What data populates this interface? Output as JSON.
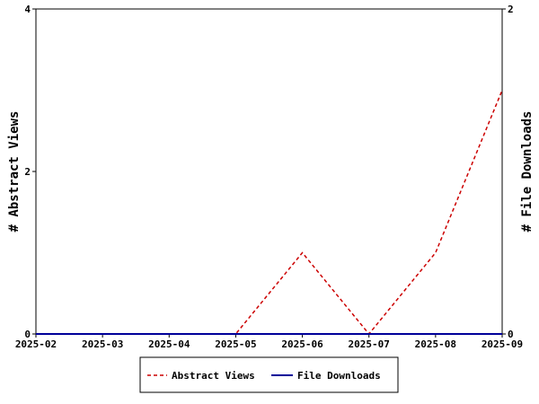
{
  "chart_data": {
    "type": "line",
    "x": [
      "2025-02",
      "2025-03",
      "2025-04",
      "2025-05",
      "2025-06",
      "2025-07",
      "2025-08",
      "2025-09"
    ],
    "series": [
      {
        "name": "Abstract Views",
        "axis": "left",
        "color": "#cc0000",
        "style": "dashed",
        "values": [
          0,
          0,
          0,
          0,
          1,
          0,
          1,
          3
        ]
      },
      {
        "name": "File Downloads",
        "axis": "right",
        "color": "#000099",
        "style": "solid",
        "values": [
          0,
          0,
          0,
          0,
          0,
          0,
          0,
          0
        ]
      }
    ],
    "ylabel": "# Abstract Views",
    "ylabel_right": "# File Downloads",
    "ylim": [
      0,
      4
    ],
    "ylim_right": [
      0,
      2
    ],
    "yticks": [
      0,
      2,
      4
    ],
    "yticks_right": [
      0,
      2
    ],
    "grid": false,
    "legend_position": "bottom"
  }
}
